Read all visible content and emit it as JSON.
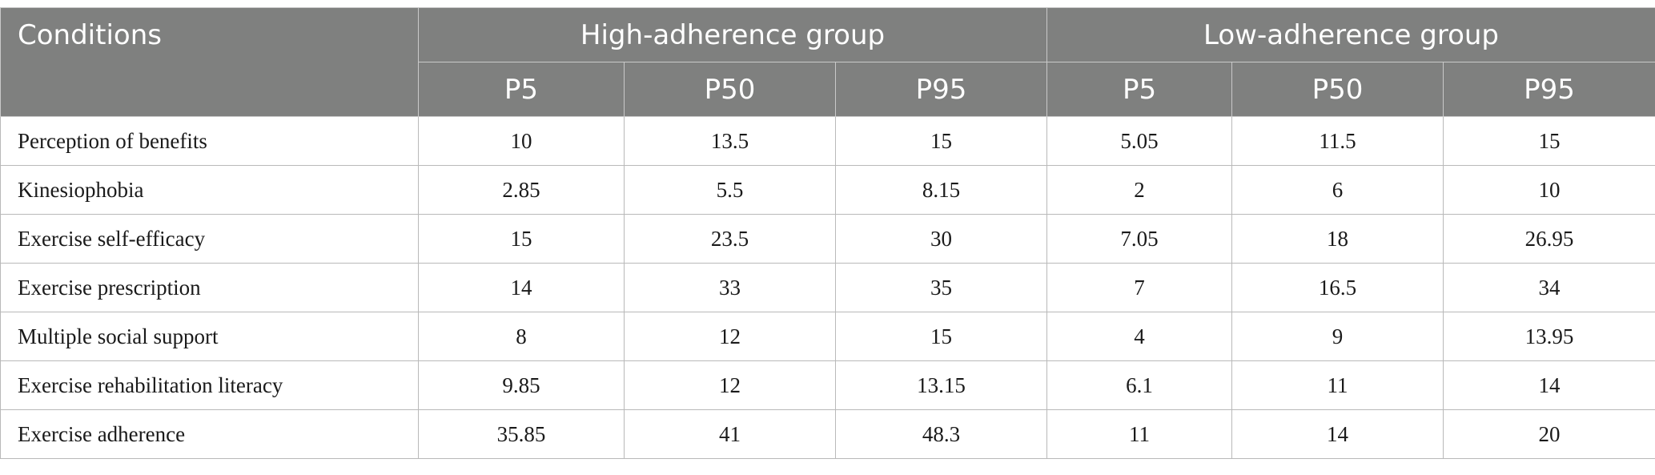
{
  "table": {
    "headers": {
      "conditions": "Conditions",
      "high_group": "High-adherence group",
      "low_group": "Low-adherence group",
      "sub": [
        "P5",
        "P50",
        "P95",
        "P5",
        "P50",
        "P95"
      ]
    },
    "rows": [
      {
        "label": "Perception of benefits",
        "values": [
          "10",
          "13.5",
          "15",
          "5.05",
          "11.5",
          "15"
        ]
      },
      {
        "label": "Kinesiophobia",
        "values": [
          "2.85",
          "5.5",
          "8.15",
          "2",
          "6",
          "10"
        ]
      },
      {
        "label": "Exercise self-efficacy",
        "values": [
          "15",
          "23.5",
          "30",
          "7.05",
          "18",
          "26.95"
        ]
      },
      {
        "label": "Exercise prescription",
        "values": [
          "14",
          "33",
          "35",
          "7",
          "16.5",
          "34"
        ]
      },
      {
        "label": "Multiple social support",
        "values": [
          "8",
          "12",
          "15",
          "4",
          "9",
          "13.95"
        ]
      },
      {
        "label": "Exercise rehabilitation literacy",
        "values": [
          "9.85",
          "12",
          "13.15",
          "6.1",
          "11",
          "14"
        ]
      },
      {
        "label": "Exercise adherence",
        "values": [
          "35.85",
          "41",
          "48.3",
          "11",
          "14",
          "20"
        ]
      }
    ]
  }
}
